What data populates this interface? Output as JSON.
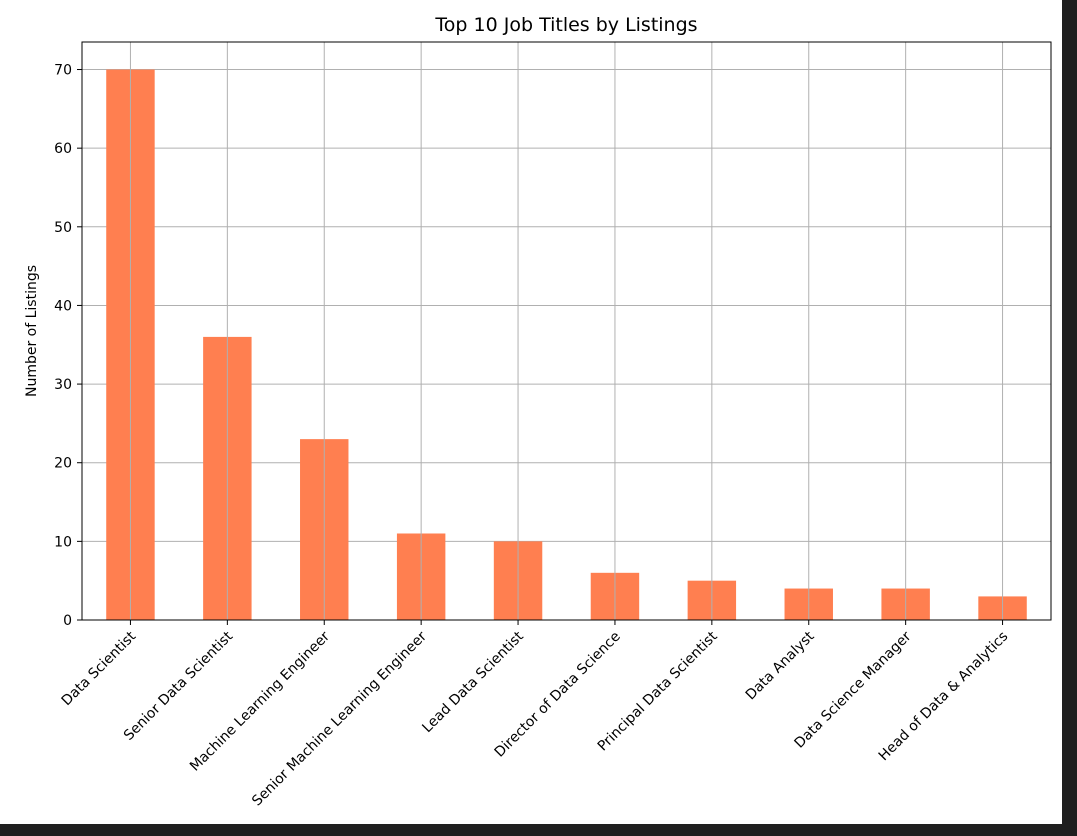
{
  "chart_data": {
    "type": "bar",
    "title": "Top 10 Job Titles by Listings",
    "xlabel": "",
    "ylabel": "Number of Listings",
    "categories": [
      "Data Scientist",
      "Senior Data Scientist",
      "Machine Learning Engineer",
      "Senior Machine Learning Engineer",
      "Lead Data Scientist",
      "Director of Data Science",
      "Principal Data Scientist",
      "Data Analyst",
      "Data Science Manager",
      "Head of Data & Analytics"
    ],
    "values": [
      70,
      36,
      23,
      11,
      10,
      6,
      5,
      4,
      4,
      3
    ],
    "ylim": [
      0,
      73.5
    ],
    "yticks": [
      0,
      10,
      20,
      30,
      40,
      50,
      60,
      70
    ],
    "grid": true,
    "bar_color": "#ff7f50",
    "x_tick_rotation_deg": 45
  }
}
